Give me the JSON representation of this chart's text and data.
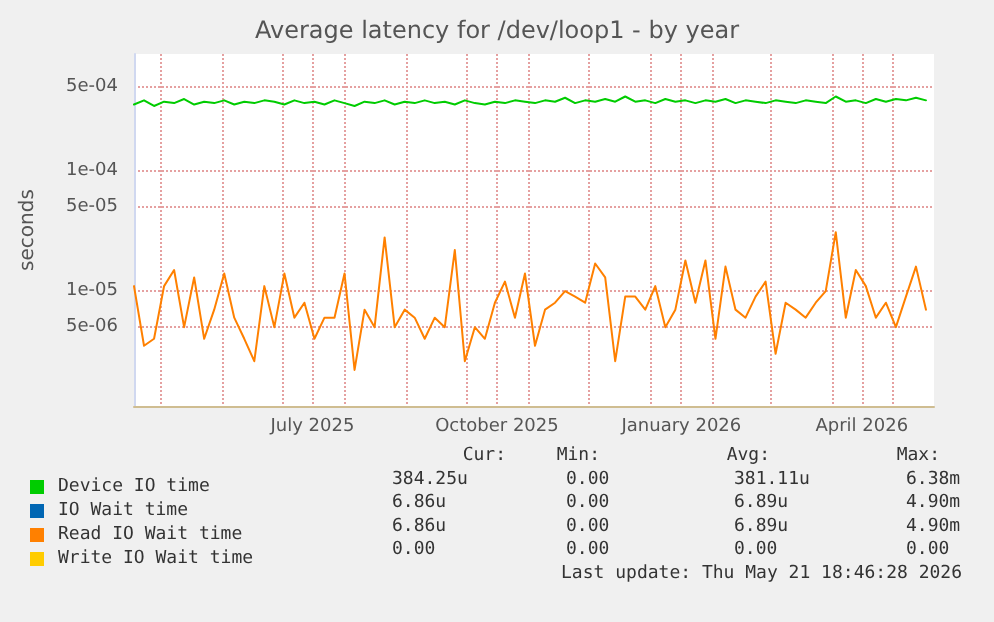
{
  "chart_data": {
    "type": "line",
    "title": "Average latency for /dev/loop1 - by year",
    "ylabel": "seconds",
    "x": [
      "2025-04-18",
      "2025-04-23",
      "2025-04-28",
      "2025-05-03",
      "2025-05-08",
      "2025-05-13",
      "2025-05-18",
      "2025-05-23",
      "2025-05-28",
      "2025-06-02",
      "2025-06-07",
      "2025-06-12",
      "2025-06-17",
      "2025-06-22",
      "2025-06-27",
      "2025-07-02",
      "2025-07-07",
      "2025-07-12",
      "2025-07-17",
      "2025-07-22",
      "2025-07-27",
      "2025-08-01",
      "2025-08-06",
      "2025-08-11",
      "2025-08-16",
      "2025-08-21",
      "2025-08-26",
      "2025-08-31",
      "2025-09-05",
      "2025-09-10",
      "2025-09-15",
      "2025-09-20",
      "2025-09-25",
      "2025-09-30",
      "2025-10-05",
      "2025-10-10",
      "2025-10-15",
      "2025-10-20",
      "2025-10-25",
      "2025-10-30",
      "2025-11-04",
      "2025-11-09",
      "2025-11-14",
      "2025-11-19",
      "2025-11-24",
      "2025-11-29",
      "2025-12-04",
      "2025-12-09",
      "2025-12-14",
      "2025-12-19",
      "2025-12-24",
      "2025-12-29",
      "2026-01-03",
      "2026-01-08",
      "2026-01-13",
      "2026-01-18",
      "2026-01-23",
      "2026-01-28",
      "2026-02-02",
      "2026-02-07",
      "2026-02-12",
      "2026-02-17",
      "2026-02-22",
      "2026-02-27",
      "2026-03-04",
      "2026-03-09",
      "2026-03-14",
      "2026-03-19",
      "2026-03-24",
      "2026-03-29",
      "2026-04-03",
      "2026-04-08",
      "2026-04-13",
      "2026-04-18",
      "2026-04-23",
      "2026-04-28",
      "2026-05-03",
      "2026-05-08",
      "2026-05-13",
      "2026-05-18"
    ],
    "series": [
      {
        "name": "Device IO time",
        "color": "#00cc00",
        "values": [
          0.00036,
          0.00039,
          0.00035,
          0.00038,
          0.00037,
          0.0004,
          0.00036,
          0.00038,
          0.00037,
          0.00039,
          0.00036,
          0.00038,
          0.00037,
          0.00039,
          0.00038,
          0.00036,
          0.00039,
          0.00037,
          0.00038,
          0.00036,
          0.00039,
          0.00037,
          0.00035,
          0.00038,
          0.00037,
          0.00039,
          0.00036,
          0.00038,
          0.00037,
          0.00039,
          0.00037,
          0.00038,
          0.00036,
          0.00039,
          0.00037,
          0.00036,
          0.00038,
          0.00037,
          0.00039,
          0.00038,
          0.00037,
          0.00039,
          0.00038,
          0.00041,
          0.00037,
          0.00039,
          0.00038,
          0.0004,
          0.00038,
          0.00042,
          0.00038,
          0.00039,
          0.00037,
          0.0004,
          0.00038,
          0.00039,
          0.00037,
          0.00039,
          0.00038,
          0.0004,
          0.00037,
          0.00039,
          0.00038,
          0.00037,
          0.00039,
          0.00038,
          0.00037,
          0.00039,
          0.00038,
          0.00037,
          0.00042,
          0.00038,
          0.00039,
          0.00037,
          0.0004,
          0.00038,
          0.0004,
          0.00039,
          0.00041,
          0.00039
        ]
      },
      {
        "name": "IO Wait time",
        "color": "#0066b3",
        "values": [
          null,
          null,
          null,
          null,
          null,
          null,
          null,
          null,
          null,
          null,
          null,
          null,
          null,
          null,
          null,
          null,
          null,
          null,
          null,
          null,
          null,
          null,
          null,
          null,
          null,
          null,
          null,
          null,
          null,
          null,
          null,
          null,
          null,
          null,
          null,
          null,
          null,
          null,
          null,
          null,
          null,
          null,
          null,
          null,
          null,
          null,
          null,
          null,
          null,
          null,
          null,
          null,
          null,
          null,
          null,
          null,
          null,
          null,
          null,
          null,
          null,
          null,
          null,
          null,
          null,
          null,
          null,
          null,
          null,
          null,
          null,
          null,
          null,
          null,
          null,
          null,
          null,
          null,
          null,
          null
        ]
      },
      {
        "name": "Read IO Wait time",
        "color": "#ff8000",
        "values": [
          1.1e-05,
          3.5e-06,
          4e-06,
          1.1e-05,
          1.5e-05,
          5e-06,
          1.3e-05,
          4e-06,
          7e-06,
          1.4e-05,
          6e-06,
          4e-06,
          2.6e-06,
          1.1e-05,
          5e-06,
          1.4e-05,
          6e-06,
          8e-06,
          4e-06,
          6e-06,
          6e-06,
          1.4e-05,
          2.2e-06,
          7e-06,
          5e-06,
          2.8e-05,
          5e-06,
          7e-06,
          6e-06,
          4e-06,
          6e-06,
          5e-06,
          2.2e-05,
          2.6e-06,
          5e-06,
          4e-06,
          8e-06,
          1.2e-05,
          6e-06,
          1.4e-05,
          3.5e-06,
          7e-06,
          8e-06,
          1e-05,
          9e-06,
          8e-06,
          1.7e-05,
          1.3e-05,
          2.6e-06,
          9e-06,
          9e-06,
          7e-06,
          1.1e-05,
          5e-06,
          7e-06,
          1.8e-05,
          8e-06,
          1.8e-05,
          4e-06,
          1.6e-05,
          7e-06,
          6e-06,
          9e-06,
          1.2e-05,
          3e-06,
          8e-06,
          7e-06,
          6e-06,
          8e-06,
          1e-05,
          3.1e-05,
          6e-06,
          1.5e-05,
          1.1e-05,
          6e-06,
          8e-06,
          5e-06,
          9e-06,
          1.6e-05,
          7e-06
        ]
      },
      {
        "name": "Write IO Wait time",
        "color": "#ffcc00",
        "values": [
          null,
          null,
          null,
          null,
          null,
          null,
          null,
          null,
          null,
          null,
          null,
          null,
          null,
          null,
          null,
          null,
          null,
          null,
          null,
          null,
          null,
          null,
          null,
          null,
          null,
          null,
          null,
          null,
          null,
          null,
          null,
          null,
          null,
          null,
          null,
          null,
          null,
          null,
          null,
          null,
          null,
          null,
          null,
          null,
          null,
          null,
          null,
          null,
          null,
          null,
          null,
          null,
          null,
          null,
          null,
          null,
          null,
          null,
          null,
          null,
          null,
          null,
          null,
          null,
          null,
          null,
          null,
          null,
          null,
          null,
          null,
          null,
          null,
          null,
          null,
          null,
          null,
          null,
          null,
          null
        ]
      }
    ],
    "xlim": [
      "2025-04-18",
      "2026-05-22"
    ],
    "xticks": [
      {
        "value": "2025-05-01",
        "label": null
      },
      {
        "value": "2025-06-01",
        "label": null
      },
      {
        "value": "2025-07-01",
        "label": null
      },
      {
        "value": "2025-07-16",
        "label": "July 2025"
      },
      {
        "value": "2025-08-01",
        "label": null
      },
      {
        "value": "2025-09-01",
        "label": null
      },
      {
        "value": "2025-10-01",
        "label": null
      },
      {
        "value": "2025-10-16",
        "label": "October 2025"
      },
      {
        "value": "2025-11-01",
        "label": null
      },
      {
        "value": "2025-12-01",
        "label": null
      },
      {
        "value": "2026-01-01",
        "label": null
      },
      {
        "value": "2026-01-16",
        "label": "January 2026"
      },
      {
        "value": "2026-02-01",
        "label": null
      },
      {
        "value": "2026-03-01",
        "label": null
      },
      {
        "value": "2026-04-01",
        "label": null
      },
      {
        "value": "2026-04-16",
        "label": "April 2026"
      },
      {
        "value": "2026-05-01",
        "label": null
      }
    ],
    "ylim": [
      1.1e-06,
      0.00095
    ],
    "yticks": [
      {
        "value": 5e-06,
        "label": "5e-06"
      },
      {
        "value": 1e-05,
        "label": "1e-05"
      },
      {
        "value": 5e-05,
        "label": "5e-05"
      },
      {
        "value": 0.0001,
        "label": "1e-04"
      },
      {
        "value": 0.0005,
        "label": "5e-04"
      }
    ],
    "log": "y",
    "grid": true,
    "legend": "bottom left",
    "marker": "none",
    "line_style": "solid",
    "annotations": [
      "Cur:",
      "Min:",
      "Avg:",
      "Max:",
      "384.25u",
      "0.00",
      "381.11u",
      "6.38m",
      "6.86u",
      "0.00",
      "6.89u",
      "4.90m",
      "6.86u",
      "0.00",
      "6.89u",
      "4.90m",
      "0.00",
      "0.00",
      "0.00",
      "0.00",
      "Last update: Thu May 21 18:46:28 2026"
    ]
  }
}
